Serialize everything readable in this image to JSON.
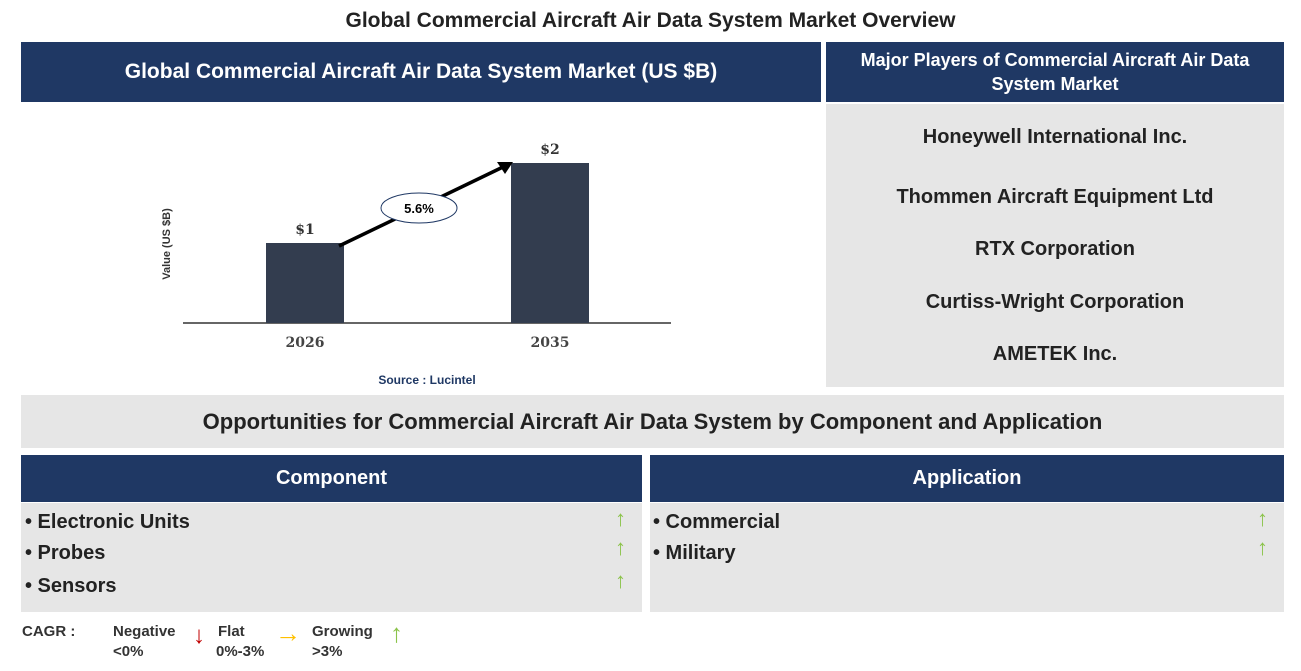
{
  "page_title": "Global Commercial Aircraft Air Data System Market Overview",
  "chart_panel_title": "Global Commercial Aircraft Air Data System Market (US $B)",
  "chart_data": {
    "type": "bar",
    "categories": [
      "2026",
      "2035"
    ],
    "values": [
      1,
      2
    ],
    "data_labels": [
      "$1",
      "$2"
    ],
    "ylabel": "Value (US $B)",
    "cagr_label": "5.6%",
    "source": "Source : Lucintel",
    "bar_color": "#333d4f"
  },
  "players": {
    "title": "Major Players of Commercial Aircraft Air Data System Market",
    "items": [
      "Honeywell International Inc.",
      "Thommen Aircraft Equipment Ltd",
      "RTX Corporation",
      "Curtiss-Wright Corporation",
      "AMETEK Inc."
    ]
  },
  "opportunities_title": "Opportunities for Commercial Aircraft Air Data System by Component and Application",
  "component": {
    "title": "Component",
    "items": [
      "• Electronic Units",
      "• Probes",
      "• Sensors"
    ],
    "trend": "growing"
  },
  "application": {
    "title": "Application",
    "items": [
      "• Commercial",
      "• Military"
    ],
    "trend": "growing"
  },
  "legend": {
    "label": "CAGR :",
    "negative": "Negative",
    "negative_range": "<0%",
    "flat": "Flat",
    "flat_range": "0%-3%",
    "growing": "Growing",
    "growing_range": ">3%"
  },
  "colors": {
    "navy": "#1f3864",
    "gray": "#e6e6e6",
    "up": "#8bc34a",
    "down": "#c00000",
    "flat": "#ffc000"
  }
}
